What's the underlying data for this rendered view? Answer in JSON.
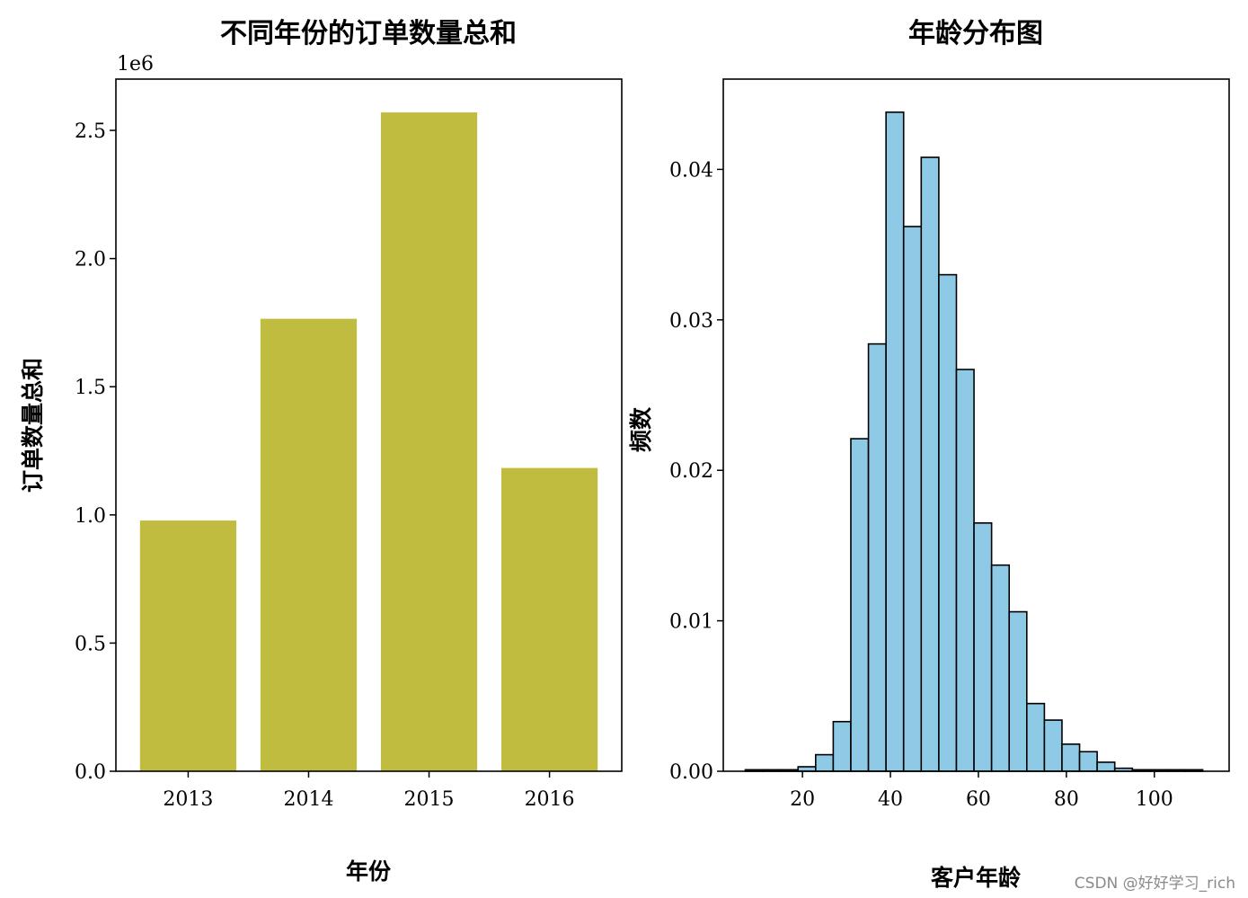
{
  "chart_data": [
    {
      "type": "bar",
      "title": "不同年份的订单数量总和",
      "xlabel": "年份",
      "ylabel": "订单数量总和",
      "offset_text": "1e6",
      "categories": [
        "2013",
        "2014",
        "2015",
        "2016"
      ],
      "values": [
        978000,
        1765000,
        2570000,
        1183000
      ],
      "ylim": [
        0,
        2700000
      ],
      "yticks": [
        0,
        500000,
        1000000,
        1500000,
        2000000,
        2500000
      ],
      "ytick_labels": [
        "0.0",
        "0.5",
        "1.0",
        "1.5",
        "2.0",
        "2.5"
      ],
      "bar_color": "#bfbc3f",
      "grid": false
    },
    {
      "type": "bar",
      "title": "年龄分布图",
      "xlabel": "客户年龄",
      "ylabel": "频数",
      "bin_edges": [
        7,
        11,
        15,
        19,
        23,
        27,
        31,
        35,
        39,
        43,
        47,
        51,
        55,
        59,
        63,
        67,
        71,
        75,
        79,
        83,
        87,
        91,
        95,
        99,
        103,
        107,
        111
      ],
      "values": [
        0.0001,
        0.0001,
        0.0001,
        0.0003,
        0.0011,
        0.0033,
        0.0221,
        0.0284,
        0.0438,
        0.0362,
        0.0408,
        0.033,
        0.0267,
        0.0165,
        0.0137,
        0.0106,
        0.0045,
        0.0034,
        0.0018,
        0.0013,
        0.0006,
        0.0002,
        0.0001,
        0.0001,
        0.0001,
        0.0001
      ],
      "xlim": [
        2,
        117
      ],
      "ylim": [
        0,
        0.046
      ],
      "xticks": [
        20,
        40,
        60,
        80,
        100
      ],
      "xtick_labels": [
        "20",
        "40",
        "60",
        "80",
        "100"
      ],
      "yticks": [
        0,
        0.01,
        0.02,
        0.03,
        0.04
      ],
      "ytick_labels": [
        "0.00",
        "0.01",
        "0.02",
        "0.03",
        "0.04"
      ],
      "bar_color": "#8ecae6",
      "edge_color": "#000000",
      "grid": false
    }
  ],
  "watermark": "CSDN @好好学习_rich"
}
